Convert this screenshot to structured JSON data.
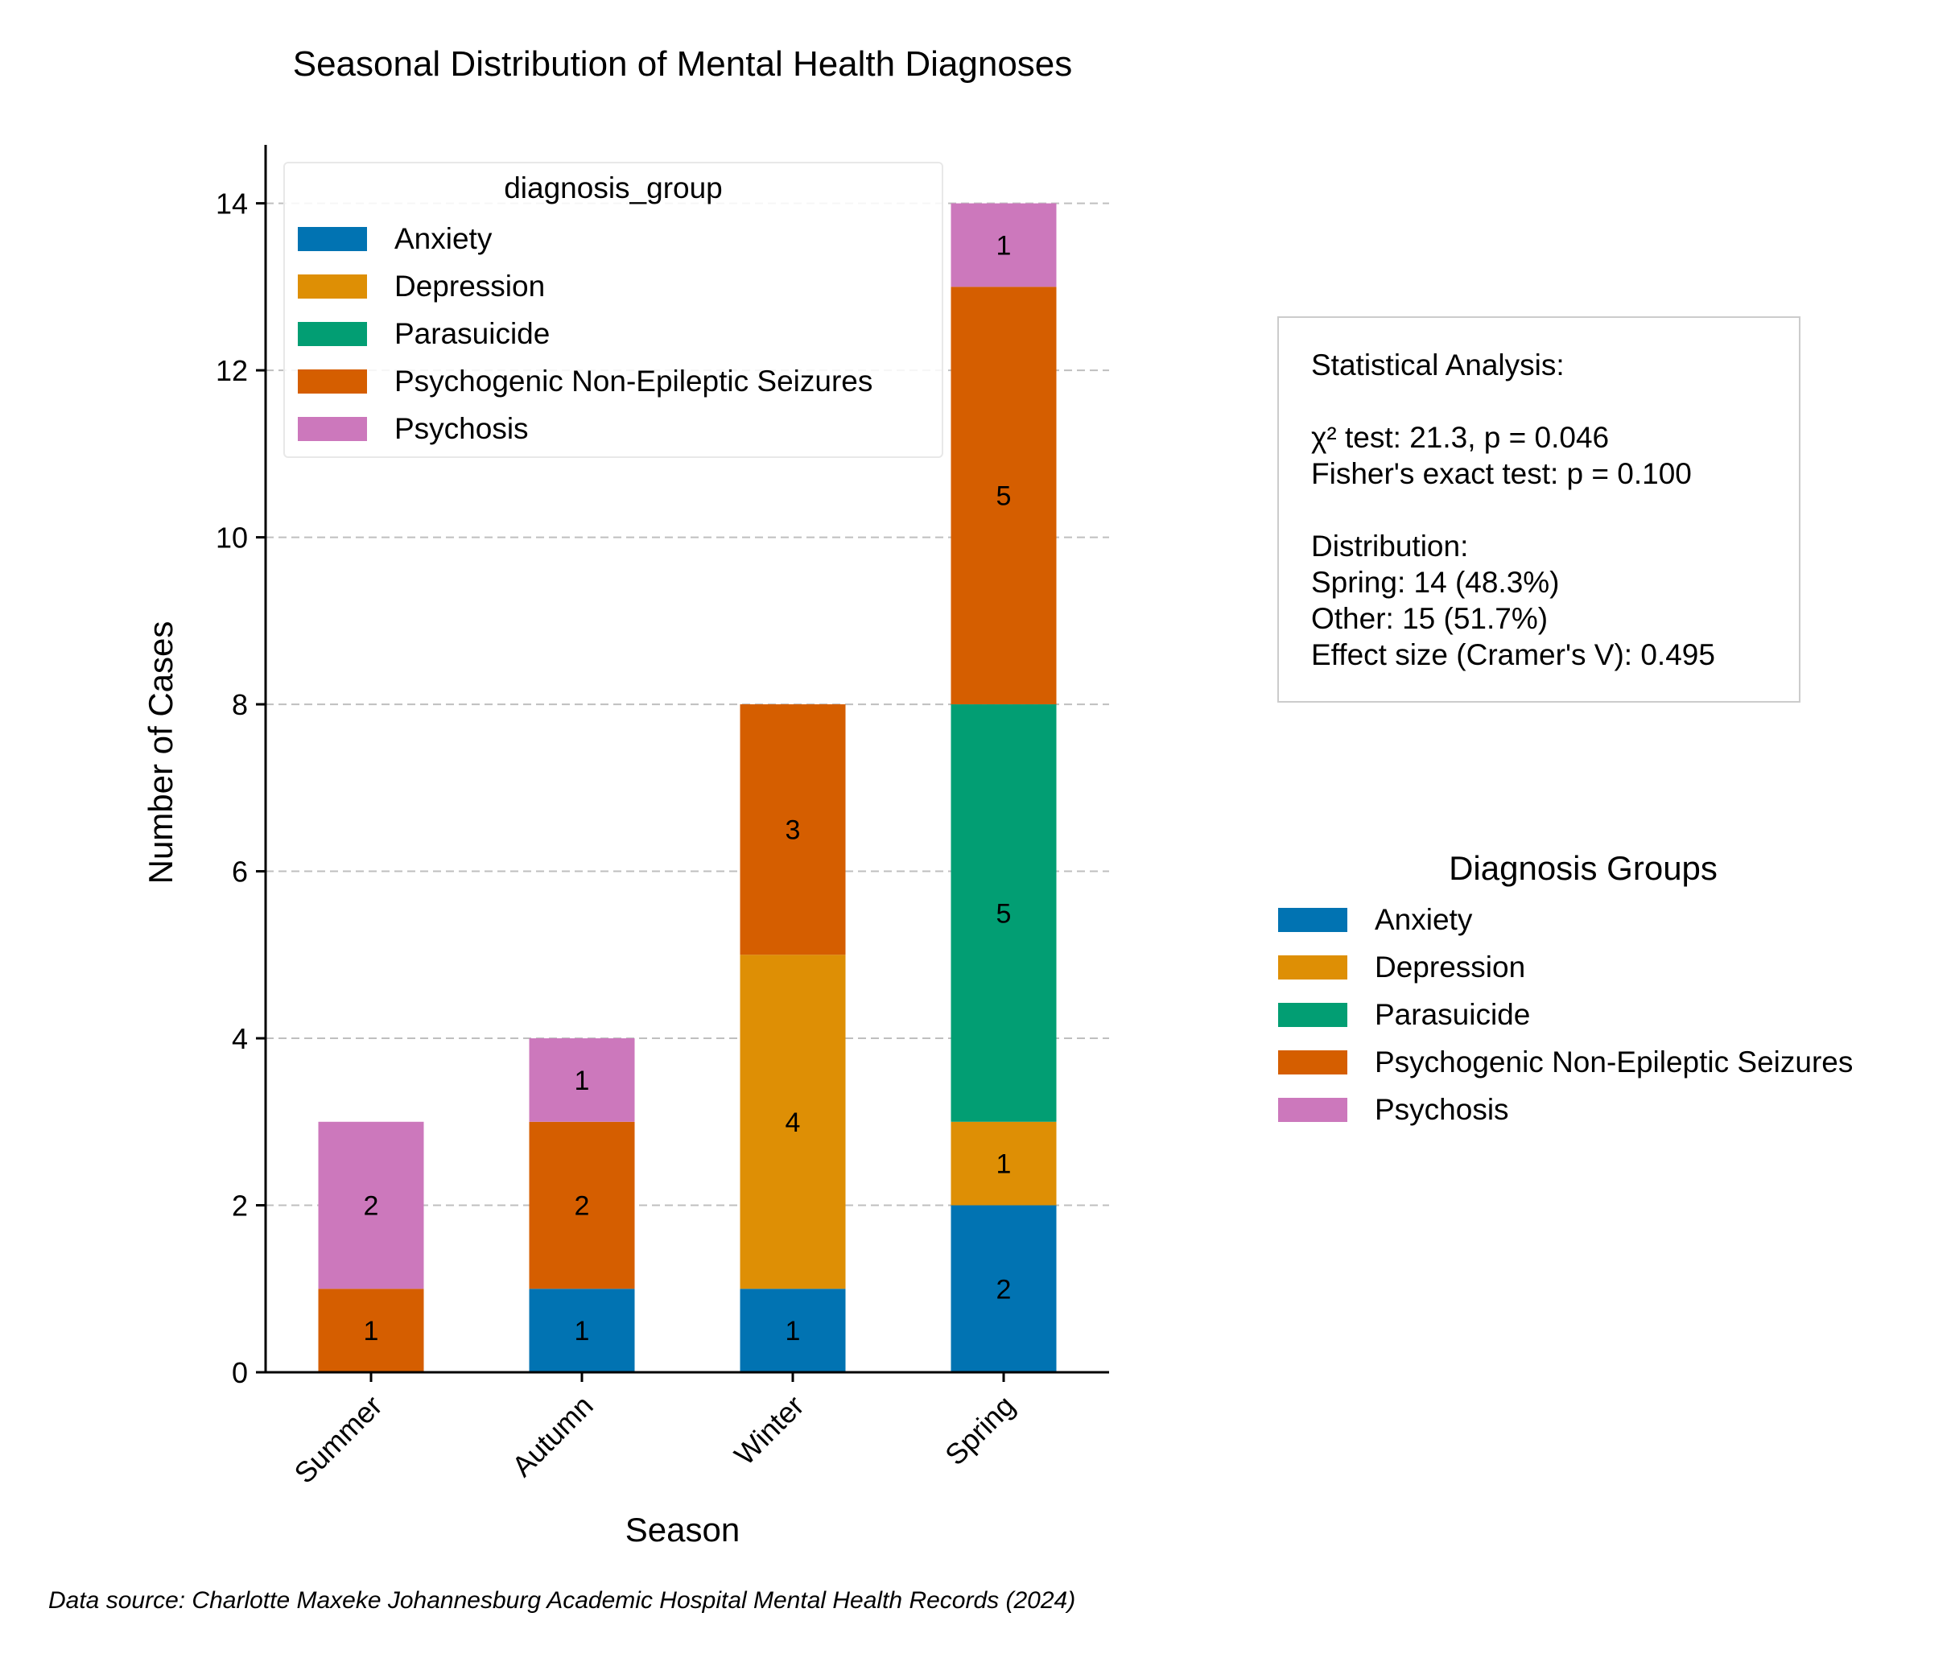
{
  "chart_data": {
    "type": "bar",
    "stacked": true,
    "title": "Seasonal Distribution of Mental Health Diagnoses",
    "xlabel": "Season",
    "ylabel": "Number of Cases",
    "categories": [
      "Summer",
      "Autumn",
      "Winter",
      "Spring"
    ],
    "ylim": [
      0,
      14.7
    ],
    "yticks": [
      0,
      2,
      4,
      6,
      8,
      10,
      12,
      14
    ],
    "grid": "y-dashed",
    "series": [
      {
        "name": "Anxiety",
        "color": "#0173b2",
        "values": [
          0,
          1,
          1,
          2
        ]
      },
      {
        "name": "Depression",
        "color": "#de8f05",
        "values": [
          0,
          0,
          4,
          1
        ]
      },
      {
        "name": "Parasuicide",
        "color": "#029e73",
        "values": [
          0,
          0,
          0,
          5
        ]
      },
      {
        "name": "Psychogenic Non-Epileptic Seizures",
        "color": "#d55e00",
        "values": [
          1,
          2,
          3,
          5
        ]
      },
      {
        "name": "Psychosis",
        "color": "#cc78bc",
        "values": [
          2,
          1,
          0,
          1
        ]
      }
    ],
    "legend": {
      "title": "diagnosis_group",
      "placement": "upper-left"
    },
    "legend2": {
      "title": "Diagnosis Groups",
      "placement": "right"
    }
  },
  "stats": {
    "heading": "Statistical Analysis:",
    "chi2": "χ² test: 21.3, p = 0.046",
    "fisher": "Fisher's exact test: p = 0.100",
    "dist_heading": "Distribution:",
    "spring": "Spring: 14 (48.3%)",
    "other": "Other: 15 (51.7%)",
    "effect": "Effect size (Cramer's V): 0.495"
  },
  "footer": "Data source: Charlotte Maxeke Johannesburg Academic Hospital Mental Health Records (2024)"
}
